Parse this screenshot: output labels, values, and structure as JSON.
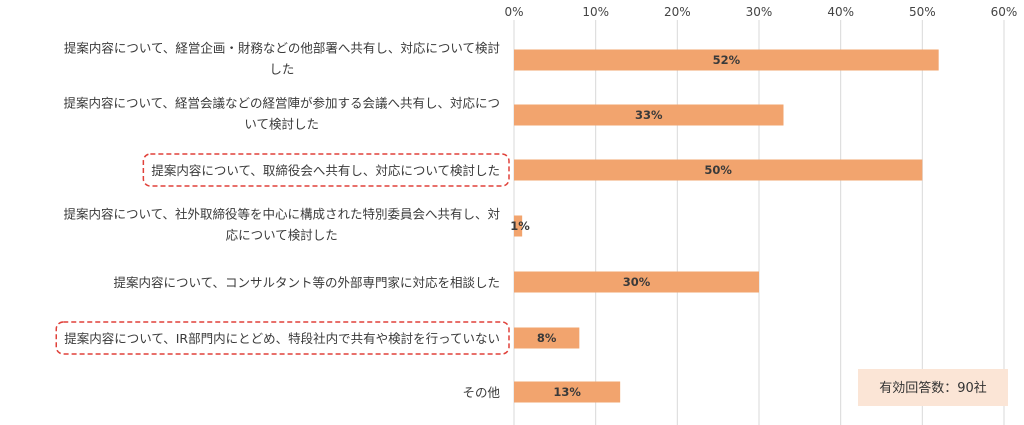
{
  "chart_data": {
    "type": "bar",
    "orientation": "horizontal",
    "categories": [
      [
        "提案内容について、経営企画・財務などの他部署へ共有し、対応について検討",
        "した"
      ],
      [
        "提案内容について、経営会議などの経営陣が参加する会議へ共有し、対応につ",
        "いて検討した"
      ],
      [
        "提案内容について、取締役会へ共有し、対応について検討した"
      ],
      [
        "提案内容について、社外取締役等を中心に構成された特別委員会へ共有し、対",
        "応について検討した"
      ],
      [
        "提案内容について、コンサルタント等の外部専門家に対応を相談した"
      ],
      [
        "提案内容について、IR部門内にとどめ、特段社内で共有や検討を行っていない"
      ],
      [
        "その他"
      ]
    ],
    "values": [
      52,
      33,
      50,
      1,
      30,
      8,
      13
    ],
    "value_labels": [
      "52%",
      "33%",
      "50%",
      "1%",
      "30%",
      "8%",
      "13%"
    ],
    "highlighted": [
      false,
      false,
      true,
      false,
      false,
      true,
      false
    ],
    "xlim": [
      0,
      60
    ],
    "xticks": [
      0,
      10,
      20,
      30,
      40,
      50,
      60
    ],
    "xtick_labels": [
      "0%",
      "10%",
      "20%",
      "30%",
      "40%",
      "50%",
      "60%"
    ],
    "axis_position": "top",
    "grid": true,
    "note": "有効回答数：90社",
    "colors": {
      "bar": "#f2a46e",
      "grid": "#d9d9d9",
      "highlight_border": "#e0413a",
      "note_bg": "#fbe5d6"
    }
  }
}
